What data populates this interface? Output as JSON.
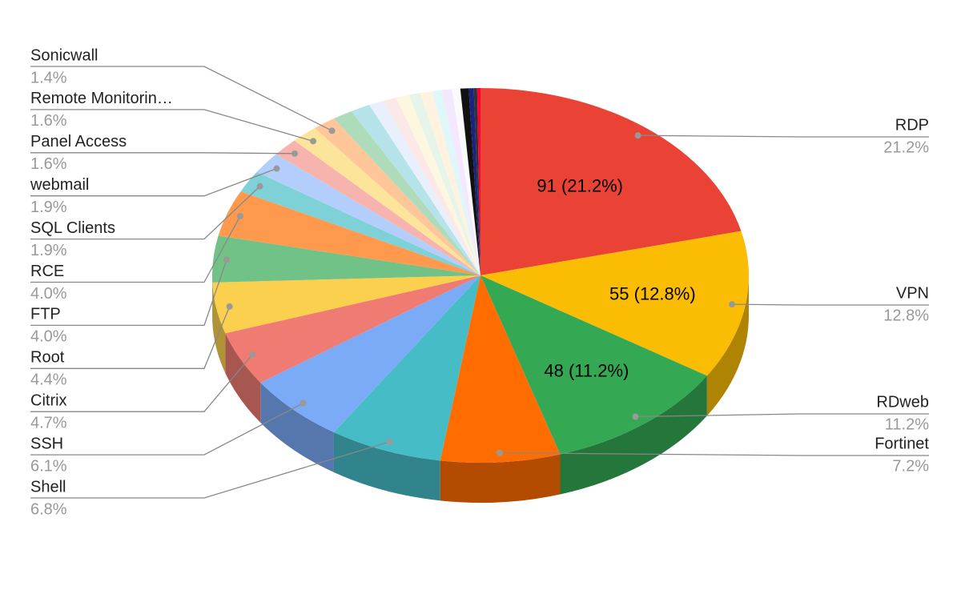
{
  "chart_data": {
    "type": "pie3d",
    "categories": [
      "RDP",
      "VPN",
      "RDweb",
      "Fortinet",
      "Shell",
      "SSH",
      "Citrix",
      "Root",
      "FTP",
      "RCE",
      "SQL Clients",
      "webmail",
      "Panel Access",
      "Remote Monitorin…",
      "Sonicwall",
      null,
      null,
      null,
      null,
      null,
      null,
      null,
      null,
      null,
      null,
      null,
      null,
      null,
      null
    ],
    "values": [
      21.2,
      12.8,
      11.2,
      7.2,
      6.8,
      6.1,
      4.7,
      4.4,
      4.0,
      4.0,
      1.9,
      1.9,
      1.6,
      1.6,
      1.4,
      1.2,
      1.2,
      0.9,
      0.8,
      0.8,
      0.7,
      0.7,
      0.6,
      0.6,
      0.5,
      0.5,
      0.3,
      0.2,
      0.2
    ],
    "value_labels": [
      "21.2%",
      "12.8%",
      "11.2%",
      "7.2%",
      "6.8%",
      "6.1%",
      "4.7%",
      "4.4%",
      "4.0%",
      "4.0%",
      "1.9%",
      "1.9%",
      "1.6%",
      "1.6%",
      "1.4%",
      null,
      null,
      null,
      null,
      null,
      null,
      null,
      null,
      null,
      null,
      null,
      null,
      null,
      null
    ],
    "slice_labels": [
      "91 (21.2%)",
      "55 (12.8%)",
      "48 (11.2%)",
      null,
      null,
      null,
      null,
      null,
      null,
      null,
      null,
      null,
      null,
      null,
      null,
      null,
      null,
      null,
      null,
      null,
      null,
      null,
      null,
      null,
      null,
      null,
      null,
      null,
      null
    ],
    "colors": [
      "#ea4335",
      "#fbbc04",
      "#34a853",
      "#ff6d01",
      "#46bdc6",
      "#7baaf7",
      "#f07b72",
      "#fcd04f",
      "#71c287",
      "#ff994d",
      "#7ed1d7",
      "#b3cefb",
      "#f7b4ae",
      "#fde49b",
      "#ffc69a",
      "#aedcba",
      "#b6e3e9",
      "#e8f0fe",
      "#fce8e6",
      "#fef7e0",
      "#e6f4ea",
      "#fff3e0",
      "#e0f7fa",
      "#f3e8fd",
      "#fafafa",
      "#111111",
      "#1a237e",
      "#333333",
      "#ff0033"
    ]
  }
}
